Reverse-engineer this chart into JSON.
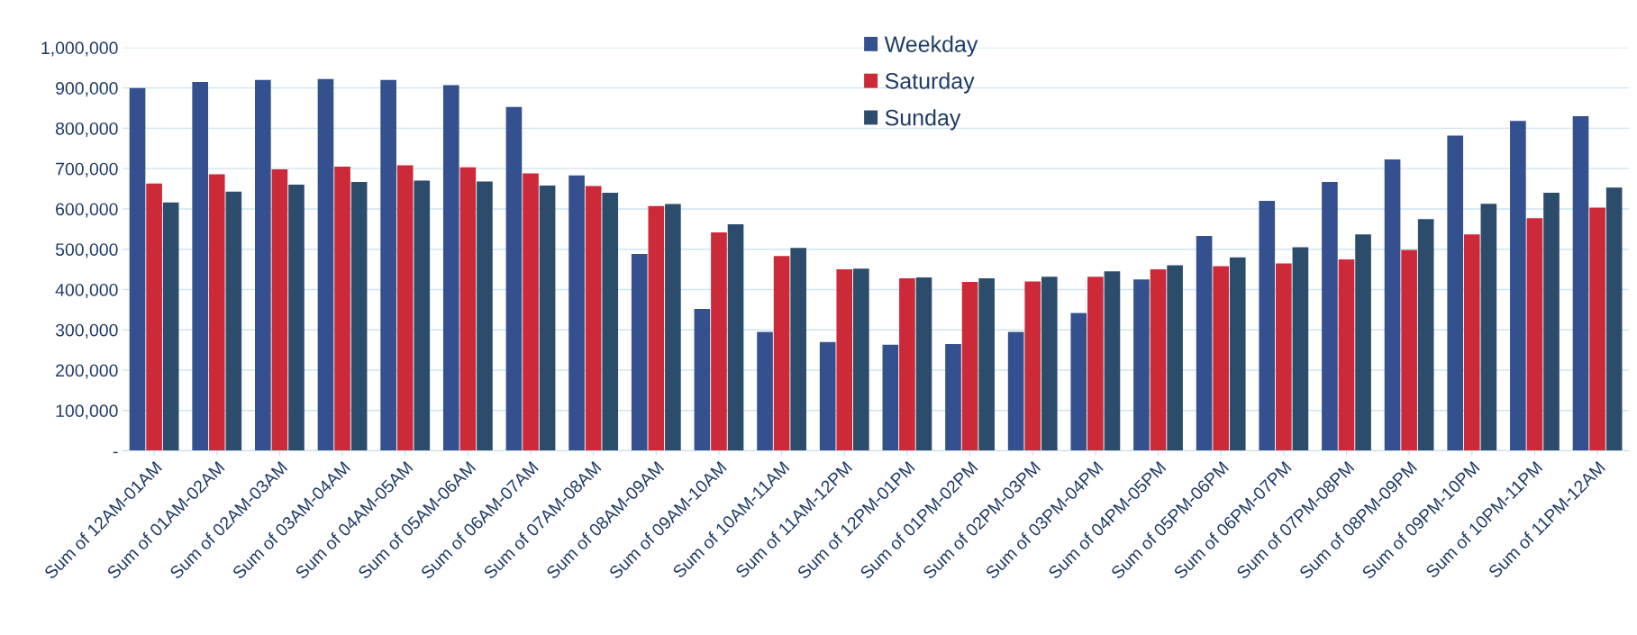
{
  "chart_data": {
    "type": "bar",
    "categories": [
      "Sum of 12AM-01AM",
      "Sum of 01AM-02AM",
      "Sum of 02AM-03AM",
      "Sum of 03AM-04AM",
      "Sum of 04AM-05AM",
      "Sum of 05AM-06AM",
      "Sum of 06AM-07AM",
      "Sum of 07AM-08AM",
      "Sum of 08AM-09AM",
      "Sum of 09AM-10AM",
      "Sum of 10AM-11AM",
      "Sum of 11AM-12PM",
      "Sum of 12PM-01PM",
      "Sum of 01PM-02PM",
      "Sum of 02PM-03PM",
      "Sum of 03PM-04PM",
      "Sum of 04PM-05PM",
      "Sum of 05PM-06PM",
      "Sum of 06PM-07PM",
      "Sum of 07PM-08PM",
      "Sum of 08PM-09PM",
      "Sum of 09PM-10PM",
      "Sum of 10PM-11PM",
      "Sum of 11PM-12AM"
    ],
    "series": [
      {
        "name": "Weekday",
        "color": "#34508f",
        "values": [
          900000,
          915000,
          920000,
          922000,
          920000,
          907000,
          853000,
          683000,
          488000,
          352000,
          295000,
          270000,
          263000,
          265000,
          295000,
          342000,
          425000,
          533000,
          620000,
          667000,
          723000,
          782000,
          818000,
          830000
        ]
      },
      {
        "name": "Saturday",
        "color": "#cc2a38",
        "values": [
          663000,
          686000,
          698000,
          705000,
          708000,
          703000,
          688000,
          657000,
          607000,
          542000,
          483000,
          450000,
          428000,
          419000,
          420000,
          432000,
          450000,
          458000,
          465000,
          475000,
          498000,
          537000,
          577000,
          603000
        ]
      },
      {
        "name": "Sunday",
        "color": "#2c4c6c",
        "values": [
          616000,
          643000,
          660000,
          667000,
          670000,
          668000,
          658000,
          640000,
          612000,
          562000,
          503000,
          452000,
          430000,
          428000,
          432000,
          445000,
          460000,
          480000,
          505000,
          537000,
          575000,
          613000,
          640000,
          653000
        ]
      }
    ],
    "ylim": [
      0,
      1000000
    ],
    "yticks": [
      {
        "value": 0,
        "label": "-"
      },
      {
        "value": 100000,
        "label": "100,000"
      },
      {
        "value": 200000,
        "label": "200,000"
      },
      {
        "value": 300000,
        "label": "300,000"
      },
      {
        "value": 400000,
        "label": "400,000"
      },
      {
        "value": 500000,
        "label": "500,000"
      },
      {
        "value": 600000,
        "label": "600,000"
      },
      {
        "value": 700000,
        "label": "700,000"
      },
      {
        "value": 800000,
        "label": "800,000"
      },
      {
        "value": 900000,
        "label": "900,000"
      },
      {
        "value": 1000000,
        "label": "1,000,000"
      }
    ],
    "grid": "y",
    "legend": "top"
  }
}
